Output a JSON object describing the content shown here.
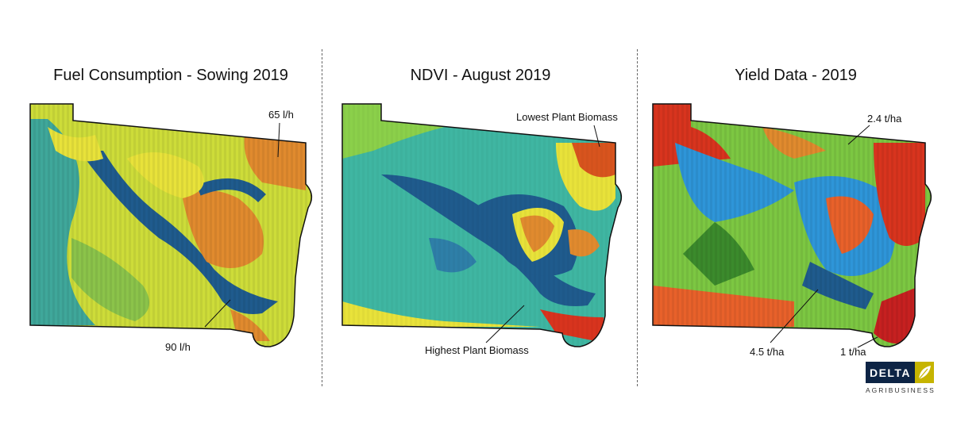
{
  "panels": [
    {
      "title": "Fuel Consumption - Sowing 2019",
      "annotations": [
        "65 l/h",
        "90 l/h"
      ]
    },
    {
      "title": "NDVI - August 2019",
      "annotations": [
        "Lowest Plant Biomass",
        "Highest Plant Biomass"
      ]
    },
    {
      "title": "Yield Data - 2019",
      "annotations": [
        "2.4 t/ha",
        "4.5 t/ha",
        "1 t/ha"
      ]
    }
  ],
  "logo": {
    "brand": "DELTA",
    "sub": "AGRIBUSINESS"
  },
  "colors": {
    "low": "#1a4f8a",
    "mid": "#3fb6a2",
    "green": "#7cc742",
    "yellow": "#e8e23a",
    "orange": "#e08a2e",
    "red": "#d8341e",
    "forest": "#3b8a2c",
    "sky": "#2e95d8"
  }
}
